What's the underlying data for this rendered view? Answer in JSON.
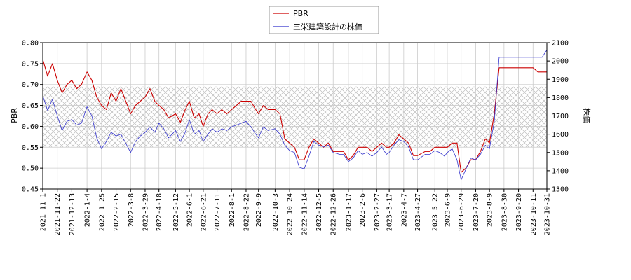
{
  "chart_data": {
    "type": "line",
    "title": "",
    "legend": {
      "placement": "top-center",
      "entries": [
        {
          "label": "PBR",
          "color": "#cc0000"
        },
        {
          "label": "三栄建築設計の株価",
          "color": "#3333cc"
        }
      ]
    },
    "y_left": {
      "label": "PBR",
      "ylim": [
        0.45,
        0.8
      ],
      "ticks": [
        "0.45",
        "0.50",
        "0.55",
        "0.60",
        "0.65",
        "0.70",
        "0.75",
        "0.80"
      ]
    },
    "y_right": {
      "label": "株価",
      "ylim": [
        1300,
        2100
      ],
      "ticks": [
        "1300",
        "1400",
        "1500",
        "1600",
        "1700",
        "1800",
        "1900",
        "2000",
        "2100"
      ]
    },
    "x_tick_labels": [
      "2021-11-1",
      "2021-11-22",
      "2021-12-13",
      "2022-1-4",
      "2022-1-25",
      "2022-2-15",
      "2022-3-8",
      "2022-3-29",
      "2022-4-18",
      "2022-5-12",
      "2022-6-1",
      "2022-6-21",
      "2022-7-11",
      "2022-8-1",
      "2022-8-22",
      "2022-9-9",
      "2022-10-3",
      "2022-10-24",
      "2022-11-14",
      "2022-12-5",
      "2022-12-26",
      "2023-1-17",
      "2023-2-6",
      "2023-2-27",
      "2023-3-17",
      "2023-4-7",
      "2023-4-27",
      "2023-5-22",
      "2023-6-9",
      "2023-6-29",
      "2023-7-20",
      "2023-8-9",
      "2023-8-30",
      "2023-9-20",
      "2023-10-11",
      "2023-10-31"
    ],
    "grid": true,
    "shaded_band": {
      "y_min": 0.55,
      "y_max": 0.695,
      "pattern": "crosshatch"
    },
    "series": [
      {
        "name": "PBR",
        "axis": "left",
        "color": "#cc0000",
        "x": [
          "2021-11-1",
          "2021-11-8",
          "2021-11-15",
          "2021-11-22",
          "2021-11-29",
          "2021-12-6",
          "2021-12-13",
          "2021-12-20",
          "2021-12-27",
          "2022-1-4",
          "2022-1-11",
          "2022-1-18",
          "2022-1-25",
          "2022-2-1",
          "2022-2-8",
          "2022-2-15",
          "2022-2-22",
          "2022-3-1",
          "2022-3-8",
          "2022-3-15",
          "2022-3-22",
          "2022-3-29",
          "2022-4-5",
          "2022-4-12",
          "2022-4-18",
          "2022-4-25",
          "2022-5-2",
          "2022-5-12",
          "2022-5-19",
          "2022-5-26",
          "2022-6-1",
          "2022-6-8",
          "2022-6-15",
          "2022-6-21",
          "2022-6-28",
          "2022-7-4",
          "2022-7-11",
          "2022-7-18",
          "2022-7-25",
          "2022-8-1",
          "2022-8-8",
          "2022-8-15",
          "2022-8-22",
          "2022-8-29",
          "2022-9-5",
          "2022-9-9",
          "2022-9-16",
          "2022-9-23",
          "2022-10-3",
          "2022-10-10",
          "2022-10-17",
          "2022-10-24",
          "2022-10-31",
          "2022-11-7",
          "2022-11-14",
          "2022-11-21",
          "2022-11-28",
          "2022-12-5",
          "2022-12-12",
          "2022-12-19",
          "2022-12-26",
          "2023-1-4",
          "2023-1-10",
          "2023-1-17",
          "2023-1-24",
          "2023-1-31",
          "2023-2-6",
          "2023-2-13",
          "2023-2-20",
          "2023-2-27",
          "2023-3-6",
          "2023-3-13",
          "2023-3-17",
          "2023-3-24",
          "2023-3-31",
          "2023-4-7",
          "2023-4-14",
          "2023-4-21",
          "2023-4-27",
          "2023-5-8",
          "2023-5-15",
          "2023-5-22",
          "2023-5-29",
          "2023-6-5",
          "2023-6-9",
          "2023-6-16",
          "2023-6-23",
          "2023-6-29",
          "2023-7-6",
          "2023-7-13",
          "2023-7-20",
          "2023-7-27",
          "2023-8-3",
          "2023-8-9",
          "2023-8-16",
          "2023-8-23",
          "2023-8-30",
          "2023-9-6",
          "2023-9-13",
          "2023-9-20",
          "2023-9-27",
          "2023-10-4",
          "2023-10-11",
          "2023-10-18",
          "2023-10-24",
          "2023-10-31"
        ],
        "values": [
          0.76,
          0.72,
          0.75,
          0.71,
          0.68,
          0.7,
          0.71,
          0.69,
          0.7,
          0.73,
          0.71,
          0.67,
          0.65,
          0.64,
          0.68,
          0.66,
          0.69,
          0.66,
          0.63,
          0.65,
          0.66,
          0.67,
          0.69,
          0.66,
          0.65,
          0.64,
          0.62,
          0.63,
          0.61,
          0.64,
          0.66,
          0.62,
          0.63,
          0.6,
          0.63,
          0.64,
          0.63,
          0.64,
          0.63,
          0.64,
          0.65,
          0.66,
          0.66,
          0.66,
          0.64,
          0.63,
          0.65,
          0.64,
          0.64,
          0.63,
          0.57,
          0.56,
          0.55,
          0.52,
          0.52,
          0.55,
          0.57,
          0.56,
          0.55,
          0.56,
          0.54,
          0.54,
          0.54,
          0.52,
          0.53,
          0.55,
          0.55,
          0.55,
          0.54,
          0.55,
          0.56,
          0.55,
          0.55,
          0.56,
          0.58,
          0.57,
          0.56,
          0.53,
          0.53,
          0.54,
          0.54,
          0.55,
          0.55,
          0.55,
          0.55,
          0.56,
          0.56,
          0.49,
          0.5,
          0.52,
          0.52,
          0.54,
          0.57,
          0.56,
          0.63,
          0.74,
          0.74,
          0.74,
          0.74,
          0.74,
          0.74,
          0.74,
          0.74,
          0.73,
          0.73,
          0.73
        ]
      },
      {
        "name": "三栄建築設計の株価",
        "axis": "right",
        "color": "#3333cc",
        "x": [
          "2021-11-1",
          "2021-11-8",
          "2021-11-15",
          "2021-11-22",
          "2021-11-29",
          "2021-12-6",
          "2021-12-13",
          "2021-12-20",
          "2021-12-27",
          "2022-1-4",
          "2022-1-11",
          "2022-1-18",
          "2022-1-25",
          "2022-2-1",
          "2022-2-8",
          "2022-2-15",
          "2022-2-22",
          "2022-3-1",
          "2022-3-8",
          "2022-3-15",
          "2022-3-22",
          "2022-3-29",
          "2022-4-5",
          "2022-4-12",
          "2022-4-18",
          "2022-4-25",
          "2022-5-2",
          "2022-5-12",
          "2022-5-19",
          "2022-5-26",
          "2022-6-1",
          "2022-6-8",
          "2022-6-15",
          "2022-6-21",
          "2022-6-28",
          "2022-7-4",
          "2022-7-11",
          "2022-7-18",
          "2022-7-25",
          "2022-8-1",
          "2022-8-8",
          "2022-8-15",
          "2022-8-22",
          "2022-8-29",
          "2022-9-5",
          "2022-9-9",
          "2022-9-16",
          "2022-9-23",
          "2022-10-3",
          "2022-10-10",
          "2022-10-17",
          "2022-10-24",
          "2022-10-31",
          "2022-11-7",
          "2022-11-14",
          "2022-11-21",
          "2022-11-28",
          "2022-12-5",
          "2022-12-12",
          "2022-12-19",
          "2022-12-26",
          "2023-1-4",
          "2023-1-10",
          "2023-1-17",
          "2023-1-24",
          "2023-1-31",
          "2023-2-6",
          "2023-2-13",
          "2023-2-20",
          "2023-2-27",
          "2023-3-6",
          "2023-3-13",
          "2023-3-17",
          "2023-3-24",
          "2023-3-31",
          "2023-4-7",
          "2023-4-14",
          "2023-4-21",
          "2023-4-27",
          "2023-5-8",
          "2023-5-15",
          "2023-5-22",
          "2023-5-29",
          "2023-6-5",
          "2023-6-9",
          "2023-6-16",
          "2023-6-23",
          "2023-6-29",
          "2023-7-6",
          "2023-7-13",
          "2023-7-20",
          "2023-7-27",
          "2023-8-3",
          "2023-8-9",
          "2023-8-16",
          "2023-8-23",
          "2023-8-30",
          "2023-9-6",
          "2023-9-13",
          "2023-9-20",
          "2023-9-27",
          "2023-10-4",
          "2023-10-11",
          "2023-10-18",
          "2023-10-24",
          "2023-10-31"
        ],
        "values": [
          1810,
          1730,
          1790,
          1700,
          1620,
          1670,
          1680,
          1650,
          1660,
          1750,
          1700,
          1580,
          1520,
          1560,
          1610,
          1590,
          1600,
          1550,
          1500,
          1560,
          1590,
          1610,
          1640,
          1610,
          1660,
          1630,
          1580,
          1620,
          1560,
          1610,
          1680,
          1600,
          1620,
          1560,
          1600,
          1630,
          1610,
          1630,
          1620,
          1640,
          1650,
          1660,
          1670,
          1640,
          1600,
          1580,
          1640,
          1620,
          1630,
          1600,
          1540,
          1510,
          1500,
          1420,
          1410,
          1480,
          1560,
          1540,
          1530,
          1540,
          1500,
          1490,
          1490,
          1450,
          1470,
          1510,
          1490,
          1500,
          1480,
          1500,
          1530,
          1490,
          1500,
          1540,
          1570,
          1560,
          1530,
          1460,
          1460,
          1490,
          1490,
          1510,
          1500,
          1480,
          1500,
          1520,
          1460,
          1350,
          1410,
          1470,
          1460,
          1490,
          1540,
          1520,
          1670,
          2020,
          2020,
          2020,
          2020,
          2020,
          2020,
          2020,
          2020,
          2020,
          2020,
          2060
        ]
      }
    ]
  }
}
